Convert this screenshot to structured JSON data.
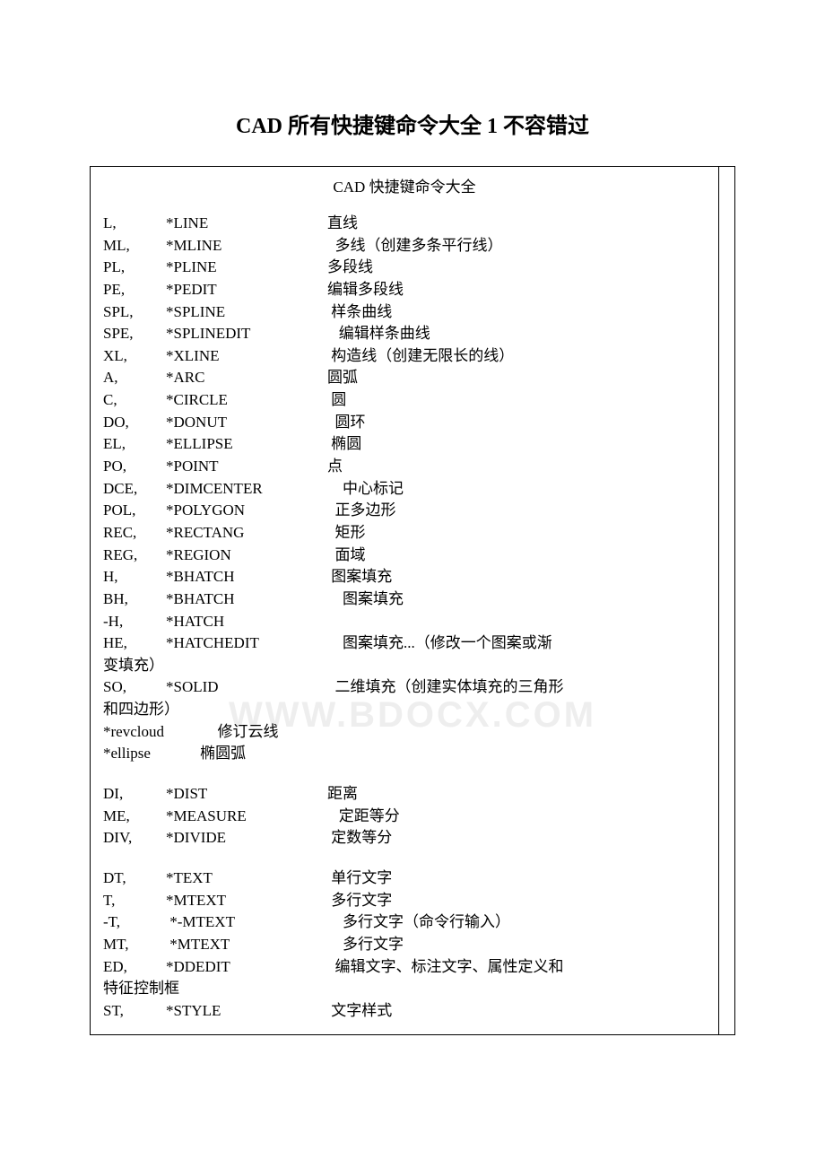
{
  "title_text": "CAD 所有快捷键命令大全 1 不容错过",
  "title_fontsize": "24px",
  "subtitle_text": "CAD 快捷键命令大全",
  "body_fontsize": "17px",
  "watermark_text": "WWW.BDOCX.COM",
  "watermark_fontsize": "40px",
  "watermark_color": "#eeeeee",
  "colors": {
    "text": "#000000",
    "background": "#ffffff",
    "border": "#000000"
  },
  "groups": [
    {
      "rows": [
        {
          "alias": "L,",
          "cmd": "*LINE",
          "desc": "直线"
        },
        {
          "alias": "ML,",
          "cmd": "*MLINE",
          "desc": "  多线（创建多条平行线）"
        },
        {
          "alias": "PL,",
          "cmd": "*PLINE",
          "desc": "多段线"
        },
        {
          "alias": "PE,",
          "cmd": "*PEDIT",
          "desc": "编辑多段线"
        },
        {
          "alias": "SPL,",
          "cmd": "*SPLINE",
          "desc": " 样条曲线"
        },
        {
          "alias": "SPE,",
          "cmd": "*SPLINEDIT",
          "desc": "   编辑样条曲线"
        },
        {
          "alias": "XL,",
          "cmd": "*XLINE",
          "desc": " 构造线（创建无限长的线）"
        },
        {
          "alias": "A,",
          "cmd": "*ARC",
          "desc": "圆弧"
        },
        {
          "alias": "C,",
          "cmd": "*CIRCLE",
          "desc": " 圆"
        },
        {
          "alias": "DO,",
          "cmd": "*DONUT",
          "desc": "  圆环"
        },
        {
          "alias": "EL,",
          "cmd": "*ELLIPSE",
          "desc": " 椭圆"
        },
        {
          "alias": "PO,",
          "cmd": "*POINT",
          "desc": "点"
        },
        {
          "alias": "DCE,",
          "cmd": "*DIMCENTER",
          "desc": "    中心标记"
        },
        {
          "alias": "POL,",
          "cmd": "*POLYGON",
          "desc": "  正多边形"
        },
        {
          "alias": "REC,",
          "cmd": "*RECTANG",
          "desc": "  矩形"
        },
        {
          "alias": "REG,",
          "cmd": "*REGION",
          "desc": "  面域"
        },
        {
          "alias": "H,",
          "cmd": "*BHATCH",
          "desc": " 图案填充"
        },
        {
          "alias": "BH,",
          "cmd": "*BHATCH",
          "desc": "    图案填充"
        },
        {
          "alias": "-H,",
          "cmd": "*HATCH",
          "desc": ""
        },
        {
          "alias": "HE,",
          "cmd": "*HATCHEDIT",
          "desc": "    图案填充...（修改一个图案或渐",
          "wrap": "变填充）"
        },
        {
          "alias": "SO,",
          "cmd": "*SOLID",
          "desc": "  二维填充（创建实体填充的三角形",
          "wrap": "和四边形）"
        },
        {
          "alias": "*revcloud",
          "cmd": "",
          "desc": "              修订云线",
          "alias_wide": true
        },
        {
          "alias": "*ellipse",
          "cmd": "",
          "desc": "             椭圆弧",
          "alias_wide": true
        }
      ]
    },
    {
      "rows": [
        {
          "alias": "DI,",
          "cmd": "*DIST",
          "desc": "距离"
        },
        {
          "alias": "ME,",
          "cmd": "*MEASURE",
          "desc": "   定距等分"
        },
        {
          "alias": "DIV,",
          "cmd": "*DIVIDE",
          "desc": " 定数等分"
        }
      ]
    },
    {
      "rows": [
        {
          "alias": "DT,",
          "cmd": "*TEXT",
          "desc": " 单行文字"
        },
        {
          "alias": "T,",
          "cmd": "*MTEXT",
          "desc": " 多行文字"
        },
        {
          "alias": "-T,",
          "cmd": " *-MTEXT",
          "desc": "    多行文字（命令行输入）"
        },
        {
          "alias": "MT,",
          "cmd": " *MTEXT",
          "desc": "    多行文字"
        },
        {
          "alias": "ED,",
          "cmd": "*DDEDIT",
          "desc": "  编辑文字、标注文字、属性定义和",
          "wrap": "特征控制框"
        },
        {
          "alias": "ST,",
          "cmd": "*STYLE",
          "desc": " 文字样式"
        }
      ]
    }
  ]
}
